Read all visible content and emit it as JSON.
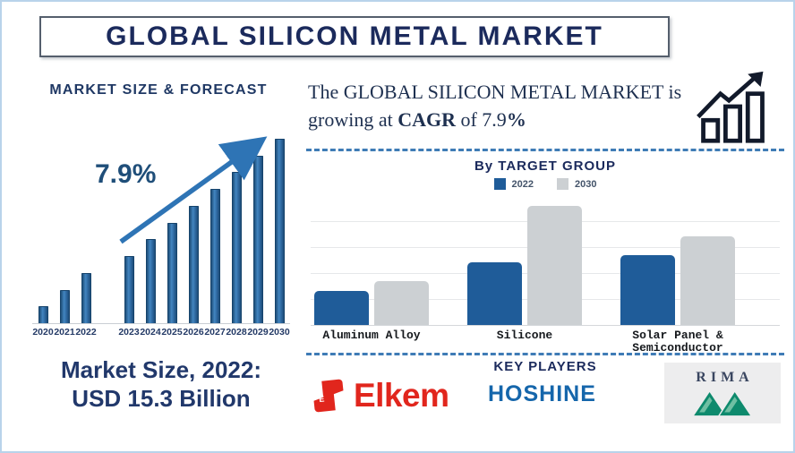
{
  "header": {
    "title": "GLOBAL SILICON METAL MARKET"
  },
  "forecast": {
    "heading": "MARKET SIZE & FORECAST",
    "growth_label": "7.9%"
  },
  "market_size": {
    "line1": "Market Size, 2022:",
    "line2": "USD 15.3 Billion"
  },
  "cagr": {
    "pre": "The GLOBAL SILICON METAL MARKET is growing at ",
    "bold1": "CAGR",
    "mid": " of 7.9",
    "bold2": "%"
  },
  "target_group": {
    "heading": "By TARGET GROUP"
  },
  "key_players": {
    "heading": "KEY PLAYERS",
    "players": {
      "player1": "Elkem",
      "player2": "HOSHINE",
      "player3": "RIMA"
    }
  },
  "colors": {
    "navy_text": "#1b2a5c",
    "forecast_bar": "#2e6da4",
    "arrow_blue": "#2e74b5",
    "dashed_divider": "#3f7cb6",
    "series_2022": "#1f5c99",
    "series_2030": "#ccd0d3",
    "elkem_red": "#e1261d",
    "hoshine_blue": "#1566ab",
    "rima_green": "#0e8a6d",
    "page_border": "#b9d3ea"
  },
  "chart_data": [
    {
      "type": "bar",
      "title": "MARKET SIZE & FORECAST",
      "categories": [
        "2020",
        "2021",
        "2022",
        "2023",
        "2024",
        "2025",
        "2026",
        "2027",
        "2028",
        "2029",
        "2030"
      ],
      "values": [
        1,
        2,
        3,
        4,
        5,
        6,
        7,
        8,
        9,
        10,
        11
      ],
      "value_note": "no y-axis shown; bars rise linearly - relative units; 2022 = USD 15.3 Billion",
      "gap_before": "2023",
      "annotation": "7.9%",
      "bar_color": "#2e6da4",
      "xlabel": "",
      "ylabel": "",
      "grid": false
    },
    {
      "type": "bar",
      "title": "By TARGET GROUP",
      "categories": [
        "Aluminum Alloy",
        "Silicone",
        "Solar Panel &\nSemiconductor"
      ],
      "series": [
        {
          "name": "2022",
          "color": "#1f5c99",
          "values": [
            13,
            24,
            27
          ]
        },
        {
          "name": "2030",
          "color": "#ccd0d3",
          "values": [
            17,
            46,
            34
          ]
        }
      ],
      "ylim": [
        0,
        50
      ],
      "grid": true,
      "legend_position": "top",
      "value_note": "relative units estimated from bar heights; no y-axis labels shown"
    }
  ]
}
